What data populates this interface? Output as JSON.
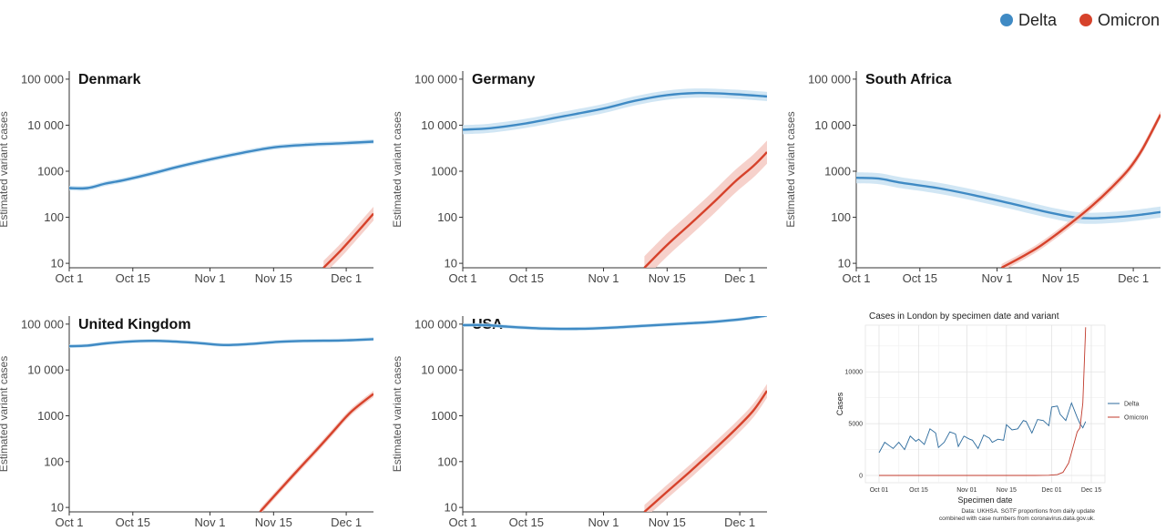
{
  "legend": {
    "items": [
      {
        "label": "Delta",
        "color": "#3f8ac4"
      },
      {
        "label": "Omicron",
        "color": "#d6422b"
      }
    ]
  },
  "colors": {
    "delta": "#3f8ac4",
    "omicron": "#d6422b",
    "delta_band": "#c9e2f2",
    "omicron_band": "#f4c9c2"
  },
  "chart_data": [
    {
      "type": "line",
      "title": "Denmark",
      "ylabel": "Estimated variant cases",
      "yscale": "log",
      "ylim": [
        8,
        150000
      ],
      "xlim": [
        0,
        67
      ],
      "xticks": [
        {
          "v": 0,
          "label": "Oct 1"
        },
        {
          "v": 14,
          "label": "Oct 15"
        },
        {
          "v": 31,
          "label": "Nov 1"
        },
        {
          "v": 45,
          "label": "Nov 15"
        },
        {
          "v": 61,
          "label": "Dec 1"
        }
      ],
      "yticks": [
        {
          "v": 10,
          "label": "10"
        },
        {
          "v": 100,
          "label": "100"
        },
        {
          "v": 1000,
          "label": "1000"
        },
        {
          "v": 10000,
          "label": "10 000"
        },
        {
          "v": 100000,
          "label": "100 000"
        }
      ],
      "series": [
        {
          "name": "Delta",
          "band": 0.05,
          "points": [
            [
              0,
              430
            ],
            [
              4,
              430
            ],
            [
              8,
              540
            ],
            [
              12,
              640
            ],
            [
              18,
              880
            ],
            [
              24,
              1250
            ],
            [
              31,
              1800
            ],
            [
              38,
              2500
            ],
            [
              45,
              3300
            ],
            [
              52,
              3750
            ],
            [
              60,
              4050
            ],
            [
              67,
              4400
            ]
          ]
        },
        {
          "name": "Omicron",
          "band": 0.15,
          "points": [
            [
              56,
              8
            ],
            [
              60,
              20
            ],
            [
              64,
              55
            ],
            [
              67,
              120
            ]
          ]
        }
      ]
    },
    {
      "type": "line",
      "title": "Germany",
      "ylabel": "Estimated variant cases",
      "yscale": "log",
      "ylim": [
        8,
        150000
      ],
      "xlim": [
        0,
        67
      ],
      "xticks": [
        {
          "v": 0,
          "label": "Oct 1"
        },
        {
          "v": 14,
          "label": "Oct 15"
        },
        {
          "v": 31,
          "label": "Nov 1"
        },
        {
          "v": 45,
          "label": "Nov 15"
        },
        {
          "v": 61,
          "label": "Dec 1"
        }
      ],
      "yticks": [
        {
          "v": 10,
          "label": "10"
        },
        {
          "v": 100,
          "label": "100"
        },
        {
          "v": 1000,
          "label": "1000"
        },
        {
          "v": 10000,
          "label": "10 000"
        },
        {
          "v": 100000,
          "label": "100 000"
        }
      ],
      "series": [
        {
          "name": "Delta",
          "band": 0.1,
          "points": [
            [
              0,
              8000
            ],
            [
              6,
              8600
            ],
            [
              14,
              11000
            ],
            [
              22,
              15500
            ],
            [
              31,
              23000
            ],
            [
              38,
              34000
            ],
            [
              45,
              45000
            ],
            [
              52,
              50000
            ],
            [
              60,
              47000
            ],
            [
              67,
              42000
            ]
          ]
        },
        {
          "name": "Omicron",
          "band": 0.25,
          "points": [
            [
              40,
              8
            ],
            [
              45,
              25
            ],
            [
              50,
              70
            ],
            [
              55,
              200
            ],
            [
              60,
              600
            ],
            [
              64,
              1300
            ],
            [
              67,
              2600
            ]
          ]
        }
      ]
    },
    {
      "type": "line",
      "title": "South Africa",
      "ylabel": "Estimated variant cases",
      "yscale": "log",
      "ylim": [
        8,
        150000
      ],
      "xlim": [
        0,
        67
      ],
      "xticks": [
        {
          "v": 0,
          "label": "Oct 1"
        },
        {
          "v": 14,
          "label": "Oct 15"
        },
        {
          "v": 31,
          "label": "Nov 1"
        },
        {
          "v": 45,
          "label": "Nov 15"
        },
        {
          "v": 61,
          "label": "Dec 1"
        }
      ],
      "yticks": [
        {
          "v": 10,
          "label": "10"
        },
        {
          "v": 100,
          "label": "100"
        },
        {
          "v": 1000,
          "label": "1000"
        },
        {
          "v": 10000,
          "label": "10 000"
        },
        {
          "v": 100000,
          "label": "100 000"
        }
      ],
      "series": [
        {
          "name": "Delta",
          "band": 0.12,
          "points": [
            [
              0,
              720
            ],
            [
              5,
              690
            ],
            [
              10,
              560
            ],
            [
              18,
              430
            ],
            [
              26,
              300
            ],
            [
              34,
              200
            ],
            [
              42,
              130
            ],
            [
              48,
              100
            ],
            [
              52,
              95
            ],
            [
              58,
              102
            ],
            [
              63,
              115
            ],
            [
              67,
              130
            ]
          ]
        },
        {
          "name": "Omicron",
          "band": 0.08,
          "points": [
            [
              32,
              8
            ],
            [
              36,
              13
            ],
            [
              40,
              22
            ],
            [
              44,
              42
            ],
            [
              48,
              85
            ],
            [
              52,
              180
            ],
            [
              56,
              420
            ],
            [
              60,
              1100
            ],
            [
              63,
              3000
            ],
            [
              67,
              17000
            ]
          ]
        }
      ]
    },
    {
      "type": "line",
      "title": "United Kingdom",
      "ylabel": "Estimated variant cases",
      "yscale": "log",
      "ylim": [
        8,
        150000
      ],
      "xlim": [
        0,
        67
      ],
      "xticks": [
        {
          "v": 0,
          "label": "Oct 1"
        },
        {
          "v": 14,
          "label": "Oct 15"
        },
        {
          "v": 31,
          "label": "Nov 1"
        },
        {
          "v": 45,
          "label": "Nov 15"
        },
        {
          "v": 61,
          "label": "Dec 1"
        }
      ],
      "yticks": [
        {
          "v": 10,
          "label": "10"
        },
        {
          "v": 100,
          "label": "100"
        },
        {
          "v": 1000,
          "label": "1000"
        },
        {
          "v": 10000,
          "label": "10 000"
        },
        {
          "v": 100000,
          "label": "100 000"
        }
      ],
      "series": [
        {
          "name": "Delta",
          "band": 0.04,
          "points": [
            [
              0,
              33000
            ],
            [
              4,
              34000
            ],
            [
              8,
              38000
            ],
            [
              14,
              42000
            ],
            [
              20,
              43000
            ],
            [
              28,
              39000
            ],
            [
              34,
              35000
            ],
            [
              40,
              37000
            ],
            [
              46,
              41000
            ],
            [
              52,
              43000
            ],
            [
              60,
              44000
            ],
            [
              67,
              47000
            ]
          ]
        },
        {
          "name": "Omicron",
          "band": 0.07,
          "points": [
            [
              42,
              8
            ],
            [
              46,
              22
            ],
            [
              50,
              60
            ],
            [
              54,
              160
            ],
            [
              58,
              440
            ],
            [
              62,
              1200
            ],
            [
              67,
              3000
            ]
          ]
        }
      ]
    },
    {
      "type": "line",
      "title": "USA",
      "ylabel": "Estimated variant cases",
      "yscale": "log",
      "ylim": [
        8,
        150000
      ],
      "xlim": [
        0,
        67
      ],
      "xticks": [
        {
          "v": 0,
          "label": "Oct 1"
        },
        {
          "v": 14,
          "label": "Oct 15"
        },
        {
          "v": 31,
          "label": "Nov 1"
        },
        {
          "v": 45,
          "label": "Nov 15"
        },
        {
          "v": 61,
          "label": "Dec 1"
        }
      ],
      "yticks": [
        {
          "v": 10,
          "label": "10"
        },
        {
          "v": 100,
          "label": "100"
        },
        {
          "v": 1000,
          "label": "1000"
        },
        {
          "v": 10000,
          "label": "10 000"
        },
        {
          "v": 100000,
          "label": "100 000"
        }
      ],
      "series": [
        {
          "name": "Delta",
          "band": 0.04,
          "points": [
            [
              0,
              95000
            ],
            [
              5,
              95000
            ],
            [
              10,
              88000
            ],
            [
              18,
              80000
            ],
            [
              25,
              79000
            ],
            [
              32,
              83000
            ],
            [
              40,
              92000
            ],
            [
              48,
              102000
            ],
            [
              55,
              112000
            ],
            [
              62,
              130000
            ],
            [
              67,
              155000
            ]
          ]
        },
        {
          "name": "Omicron",
          "band": 0.15,
          "points": [
            [
              40,
              8
            ],
            [
              45,
              22
            ],
            [
              50,
              60
            ],
            [
              55,
              170
            ],
            [
              60,
              500
            ],
            [
              64,
              1300
            ],
            [
              67,
              3500
            ]
          ]
        }
      ]
    },
    {
      "type": "line",
      "title": "Cases in London by specimen date and variant",
      "xlabel": "Specimen date",
      "ylabel": "Cases",
      "ylim": [
        -700,
        14500
      ],
      "xlim": [
        0,
        75
      ],
      "xticks": [
        {
          "v": 0,
          "label": "Oct 01"
        },
        {
          "v": 14,
          "label": "Oct 15"
        },
        {
          "v": 31,
          "label": "Nov 01"
        },
        {
          "v": 45,
          "label": "Nov 15"
        },
        {
          "v": 61,
          "label": "Dec 01"
        },
        {
          "v": 75,
          "label": "Dec 15"
        }
      ],
      "yticks": [
        {
          "v": 0,
          "label": "0"
        },
        {
          "v": 5000,
          "label": "5000"
        },
        {
          "v": 10000,
          "label": "10000"
        }
      ],
      "legend": [
        "Delta",
        "Omicron"
      ],
      "note": [
        "Data: UKHSA. SGTF proportions from daily update",
        "combined with case numbers from coronavirus.data.gov.uk."
      ],
      "series": [
        {
          "name": "Delta",
          "points": [
            [
              0,
              2200
            ],
            [
              2,
              3200
            ],
            [
              4,
              2800
            ],
            [
              5,
              2600
            ],
            [
              7,
              3200
            ],
            [
              9,
              2500
            ],
            [
              11,
              3800
            ],
            [
              13,
              3300
            ],
            [
              14,
              3500
            ],
            [
              16,
              3000
            ],
            [
              18,
              4500
            ],
            [
              20,
              4100
            ],
            [
              21,
              2700
            ],
            [
              23,
              3200
            ],
            [
              25,
              4200
            ],
            [
              27,
              4000
            ],
            [
              28,
              2800
            ],
            [
              30,
              3800
            ],
            [
              32,
              3500
            ],
            [
              33,
              3400
            ],
            [
              35,
              2600
            ],
            [
              37,
              3900
            ],
            [
              39,
              3600
            ],
            [
              40,
              3200
            ],
            [
              42,
              3500
            ],
            [
              44,
              3400
            ],
            [
              45,
              4900
            ],
            [
              47,
              4400
            ],
            [
              49,
              4500
            ],
            [
              51,
              5300
            ],
            [
              52,
              5200
            ],
            [
              54,
              4100
            ],
            [
              56,
              5400
            ],
            [
              58,
              5300
            ],
            [
              60,
              4800
            ],
            [
              61,
              6600
            ],
            [
              63,
              6700
            ],
            [
              64,
              5900
            ],
            [
              66,
              5300
            ],
            [
              68,
              7000
            ],
            [
              70,
              5600
            ],
            [
              71,
              5000
            ],
            [
              72,
              4600
            ],
            [
              73,
              5200
            ]
          ]
        },
        {
          "name": "Omicron",
          "points": [
            [
              0,
              0
            ],
            [
              55,
              0
            ],
            [
              60,
              20
            ],
            [
              63,
              80
            ],
            [
              65,
              300
            ],
            [
              67,
              1200
            ],
            [
              69,
              3200
            ],
            [
              70,
              4200
            ],
            [
              71,
              4600
            ],
            [
              72,
              7000
            ],
            [
              73,
              14300
            ]
          ]
        }
      ]
    }
  ]
}
